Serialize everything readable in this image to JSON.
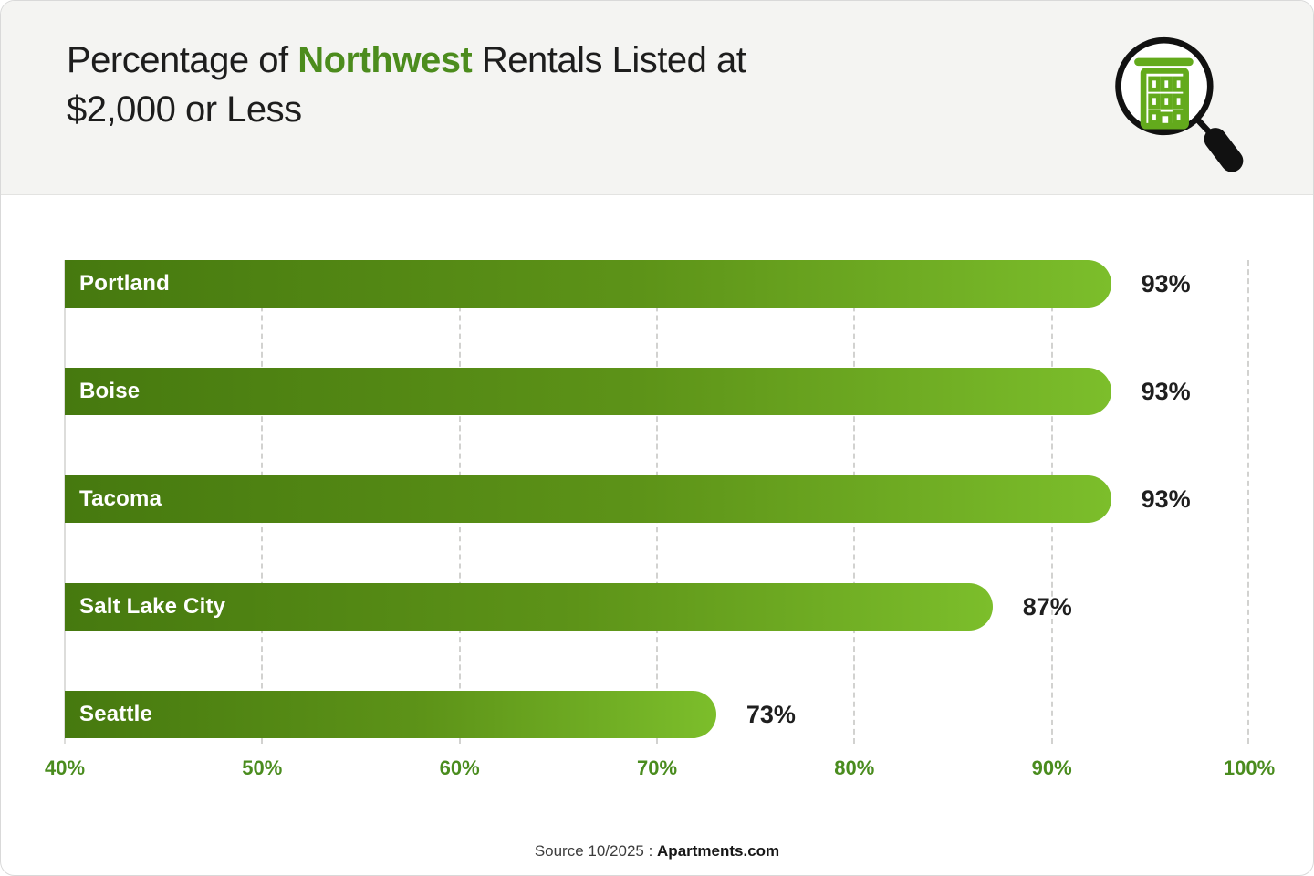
{
  "header": {
    "title": {
      "pre": "Percentage of ",
      "highlight": "Northwest",
      "post": " Rentals Listed at",
      "line2": "$2,000 or Less"
    },
    "icon": "building-search-magnifier"
  },
  "chart_data": {
    "type": "bar",
    "orientation": "horizontal",
    "title": "Percentage of Northwest Rentals Listed at $2,000 or Less",
    "categories": [
      "Portland",
      "Boise",
      "Tacoma",
      "Salt Lake City",
      "Seattle"
    ],
    "values": [
      93,
      93,
      93,
      87,
      73
    ],
    "value_labels": [
      "93%",
      "93%",
      "93%",
      "87%",
      "73%"
    ],
    "xlim": [
      40,
      100
    ],
    "x_ticks": [
      "40%",
      "50%",
      "60%",
      "70%",
      "80%",
      "90%",
      "100%"
    ],
    "xlabel": "",
    "ylabel": "",
    "grid": "vertical dashed gridlines at each 10% tick",
    "legend": "none",
    "bar_gradient": [
      "#46790f",
      "#7cbe2b"
    ]
  },
  "source": {
    "prefix": "Source 10/2025 : ",
    "brand": "Apartments.com"
  },
  "colors": {
    "accent_green": "#4c8c1d",
    "axis_label_green": "#4a8c1e",
    "bar_gradient_start": "#46790f",
    "bar_gradient_end": "#7cbe2b",
    "title_text": "#1d1d1d",
    "header_bg": "#f4f4f2",
    "gridline": "#d2d2d0",
    "icon_building_green": "#63aa1c",
    "icon_magnifier_black": "#111111"
  }
}
